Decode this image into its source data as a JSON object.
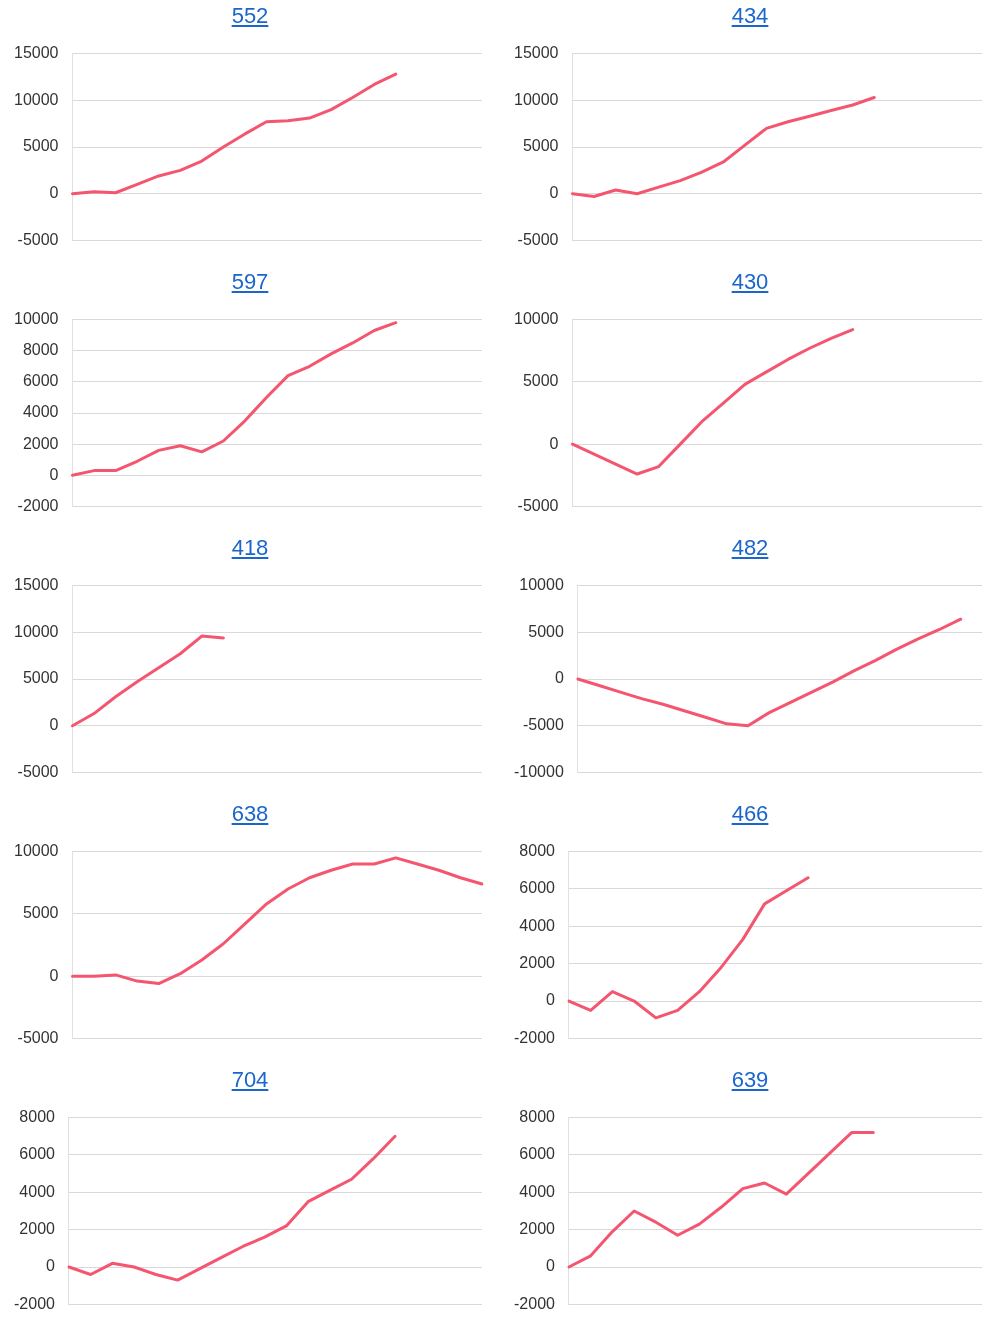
{
  "chart_data": [
    {
      "type": "line",
      "title": "552",
      "categories": [
        null,
        null,
        null,
        null,
        null,
        null,
        null,
        null,
        null,
        null,
        null,
        null,
        null,
        null,
        null,
        null,
        null,
        null,
        null,
        null
      ],
      "series": [
        {
          "color": "#f4566f",
          "values": [
            0,
            200,
            100,
            1000,
            1900,
            2500,
            3500,
            5000,
            6400,
            7700,
            7800,
            8100,
            9000,
            10300,
            11700,
            12800,
            null,
            null,
            null,
            null
          ]
        }
      ],
      "ylim": [
        -5000,
        15000
      ],
      "yticks": [
        -5000,
        0,
        5000,
        10000,
        15000
      ],
      "grid": "y",
      "tick_labels": "y",
      "marker": "none"
    },
    {
      "type": "line",
      "title": "434",
      "categories": [
        null,
        null,
        null,
        null,
        null,
        null,
        null,
        null,
        null,
        null,
        null,
        null,
        null,
        null,
        null,
        null,
        null,
        null,
        null,
        null
      ],
      "series": [
        {
          "color": "#f4566f",
          "values": [
            0,
            -300,
            400,
            0,
            700,
            1400,
            2300,
            3400,
            5200,
            7000,
            7700,
            8300,
            8900,
            9500,
            10300,
            null,
            null,
            null,
            null,
            null
          ]
        }
      ],
      "ylim": [
        -5000,
        15000
      ],
      "yticks": [
        -5000,
        0,
        5000,
        10000,
        15000
      ],
      "grid": "y",
      "tick_labels": "y",
      "marker": "none"
    },
    {
      "type": "line",
      "title": "597",
      "categories": [
        null,
        null,
        null,
        null,
        null,
        null,
        null,
        null,
        null,
        null,
        null,
        null,
        null,
        null,
        null,
        null,
        null,
        null,
        null,
        null
      ],
      "series": [
        {
          "color": "#f4566f",
          "values": [
            0,
            300,
            300,
            900,
            1600,
            1900,
            1500,
            2200,
            3500,
            5000,
            6400,
            7000,
            7800,
            8500,
            9300,
            9800,
            null,
            null,
            null,
            null
          ]
        }
      ],
      "ylim": [
        -2000,
        10000
      ],
      "yticks": [
        -2000,
        0,
        2000,
        4000,
        6000,
        8000,
        10000
      ],
      "grid": "y",
      "tick_labels": "y",
      "marker": "none"
    },
    {
      "type": "line",
      "title": "430",
      "categories": [
        null,
        null,
        null,
        null,
        null,
        null,
        null,
        null,
        null,
        null,
        null,
        null,
        null,
        null,
        null,
        null,
        null,
        null,
        null,
        null
      ],
      "series": [
        {
          "color": "#f4566f",
          "values": [
            0,
            -800,
            -1600,
            -2400,
            -1800,
            0,
            1800,
            3300,
            4800,
            5800,
            6800,
            7700,
            8500,
            9200,
            null,
            null,
            null,
            null,
            null,
            null
          ]
        }
      ],
      "ylim": [
        -5000,
        10000
      ],
      "yticks": [
        -5000,
        0,
        5000,
        10000
      ],
      "grid": "y",
      "tick_labels": "y",
      "marker": "none"
    },
    {
      "type": "line",
      "title": "418",
      "categories": [
        null,
        null,
        null,
        null,
        null,
        null,
        null,
        null,
        null,
        null,
        null,
        null,
        null,
        null,
        null,
        null,
        null,
        null,
        null,
        null
      ],
      "series": [
        {
          "color": "#f4566f",
          "values": [
            0,
            1300,
            3100,
            4700,
            6200,
            7700,
            9600,
            9400,
            null,
            null,
            null,
            null,
            null,
            null,
            null,
            null,
            null,
            null,
            null,
            null
          ]
        }
      ],
      "ylim": [
        -5000,
        15000
      ],
      "yticks": [
        -5000,
        0,
        5000,
        10000,
        15000
      ],
      "grid": "y",
      "tick_labels": "y",
      "marker": "none"
    },
    {
      "type": "line",
      "title": "482",
      "categories": [
        null,
        null,
        null,
        null,
        null,
        null,
        null,
        null,
        null,
        null,
        null,
        null,
        null,
        null,
        null,
        null,
        null,
        null,
        null,
        null
      ],
      "series": [
        {
          "color": "#f4566f",
          "values": [
            0,
            -700,
            -1400,
            -2100,
            -2700,
            -3400,
            -4100,
            -4800,
            -5000,
            -3600,
            -2500,
            -1400,
            -300,
            900,
            2000,
            3200,
            4300,
            5300,
            6400,
            null
          ]
        }
      ],
      "ylim": [
        -10000,
        10000
      ],
      "yticks": [
        -10000,
        -5000,
        0,
        5000,
        10000
      ],
      "grid": "y",
      "tick_labels": "y",
      "marker": "none"
    },
    {
      "type": "line",
      "title": "638",
      "categories": [
        null,
        null,
        null,
        null,
        null,
        null,
        null,
        null,
        null,
        null,
        null,
        null,
        null,
        null,
        null,
        null,
        null,
        null,
        null,
        null
      ],
      "series": [
        {
          "color": "#f4566f",
          "values": [
            0,
            0,
            100,
            -400,
            -600,
            200,
            1300,
            2600,
            4200,
            5800,
            7000,
            7900,
            8500,
            9000,
            9000,
            9500,
            9000,
            8500,
            7900,
            7400
          ]
        }
      ],
      "ylim": [
        -5000,
        10000
      ],
      "yticks": [
        -5000,
        0,
        5000,
        10000
      ],
      "grid": "y",
      "tick_labels": "y",
      "marker": "none"
    },
    {
      "type": "line",
      "title": "466",
      "categories": [
        null,
        null,
        null,
        null,
        null,
        null,
        null,
        null,
        null,
        null,
        null,
        null,
        null,
        null,
        null,
        null,
        null,
        null,
        null,
        null
      ],
      "series": [
        {
          "color": "#f4566f",
          "values": [
            0,
            -500,
            500,
            0,
            -900,
            -500,
            500,
            1800,
            3300,
            5200,
            5900,
            6600,
            null,
            null,
            null,
            null,
            null,
            null,
            null,
            null
          ]
        }
      ],
      "ylim": [
        -2000,
        8000
      ],
      "yticks": [
        -2000,
        0,
        2000,
        4000,
        6000,
        8000
      ],
      "grid": "y",
      "tick_labels": "y",
      "marker": "none"
    },
    {
      "type": "line",
      "title": "704",
      "categories": [
        null,
        null,
        null,
        null,
        null,
        null,
        null,
        null,
        null,
        null,
        null,
        null,
        null,
        null,
        null,
        null,
        null,
        null,
        null,
        null
      ],
      "series": [
        {
          "color": "#f4566f",
          "values": [
            0,
            -400,
            200,
            0,
            -400,
            -700,
            -100,
            500,
            1100,
            1600,
            2200,
            3500,
            4100,
            4700,
            5800,
            7000,
            null,
            null,
            null,
            null
          ]
        }
      ],
      "ylim": [
        -2000,
        8000
      ],
      "yticks": [
        -2000,
        0,
        2000,
        4000,
        6000,
        8000
      ],
      "grid": "y",
      "tick_labels": "y",
      "marker": "none"
    },
    {
      "type": "line",
      "title": "639",
      "categories": [
        null,
        null,
        null,
        null,
        null,
        null,
        null,
        null,
        null,
        null,
        null,
        null,
        null,
        null,
        null,
        null,
        null,
        null,
        null,
        null
      ],
      "series": [
        {
          "color": "#f4566f",
          "values": [
            0,
            600,
            1900,
            3000,
            2400,
            1700,
            2300,
            3200,
            4200,
            4500,
            3900,
            5000,
            6100,
            7200,
            7200,
            null,
            null,
            null,
            null,
            null
          ]
        }
      ],
      "ylim": [
        -2000,
        8000
      ],
      "yticks": [
        -2000,
        0,
        2000,
        4000,
        6000,
        8000
      ],
      "grid": "y",
      "tick_labels": "y",
      "marker": "none"
    }
  ]
}
